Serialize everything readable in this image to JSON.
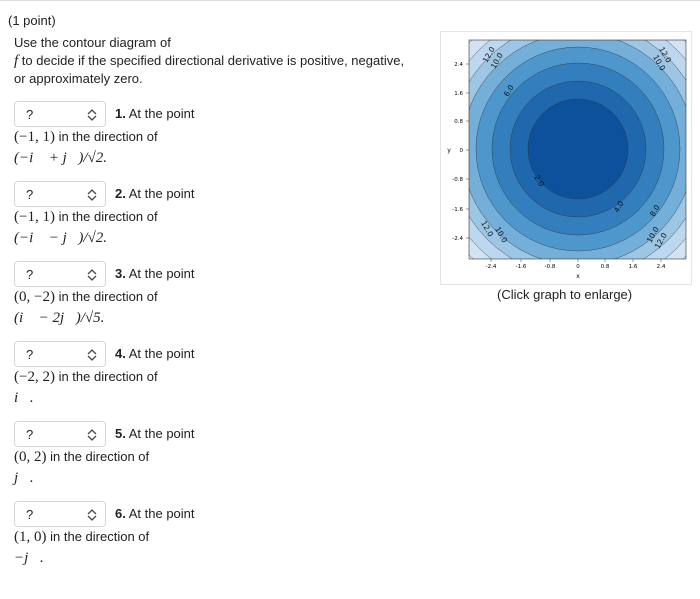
{
  "header": {
    "points": "(1 point)"
  },
  "instructions": {
    "line1": "Use the contour diagram of",
    "f": "f",
    "line2": "to decide if the specified directional derivative is positive, negative,",
    "line3": "or approximately zero."
  },
  "questions": [
    {
      "select": "?",
      "number": "1.",
      "label": "At the point",
      "point": "(−1, 1)",
      "text": "in the direction of",
      "direction": "(−i⃗ + j⃗)/√2."
    },
    {
      "select": "?",
      "number": "2.",
      "label": "At the point",
      "point": "(−1, 1)",
      "text": "in the direction of",
      "direction": "(−i⃗ − j⃗)/√2."
    },
    {
      "select": "?",
      "number": "3.",
      "label": "At the point",
      "point": "(0, −2)",
      "text": "in the direction of",
      "direction": "(i⃗ − 2j⃗)/√5."
    },
    {
      "select": "?",
      "number": "4.",
      "label": "At the point",
      "point": "(−2, 2)",
      "text": "in the direction of",
      "direction": "i⃗."
    },
    {
      "select": "?",
      "number": "5.",
      "label": "At the point",
      "point": "(0, 2)",
      "text": "in the direction of",
      "direction": "j⃗."
    },
    {
      "select": "?",
      "number": "6.",
      "label": "At the point",
      "point": "(1, 0)",
      "text": "in the direction of",
      "direction": "−j⃗."
    }
  ],
  "graph": {
    "yticks": [
      "2.4",
      "1.6",
      "0.8",
      "0",
      "-0.8",
      "-1.6",
      "-2.4"
    ],
    "xticks": [
      "-2.4",
      "-1.6",
      "-0.8",
      "0",
      "0.8",
      "1.6",
      "2.4"
    ],
    "xlabel": "x",
    "ylabel": "y",
    "contour_labels": [
      "12.0",
      "10.0",
      "6.0",
      "12.0",
      "10.0",
      "2.0",
      "4.0",
      "8.0",
      "12.0",
      "10.0",
      "10.0",
      "12.0"
    ],
    "caption": "(Click graph to enlarge)"
  }
}
